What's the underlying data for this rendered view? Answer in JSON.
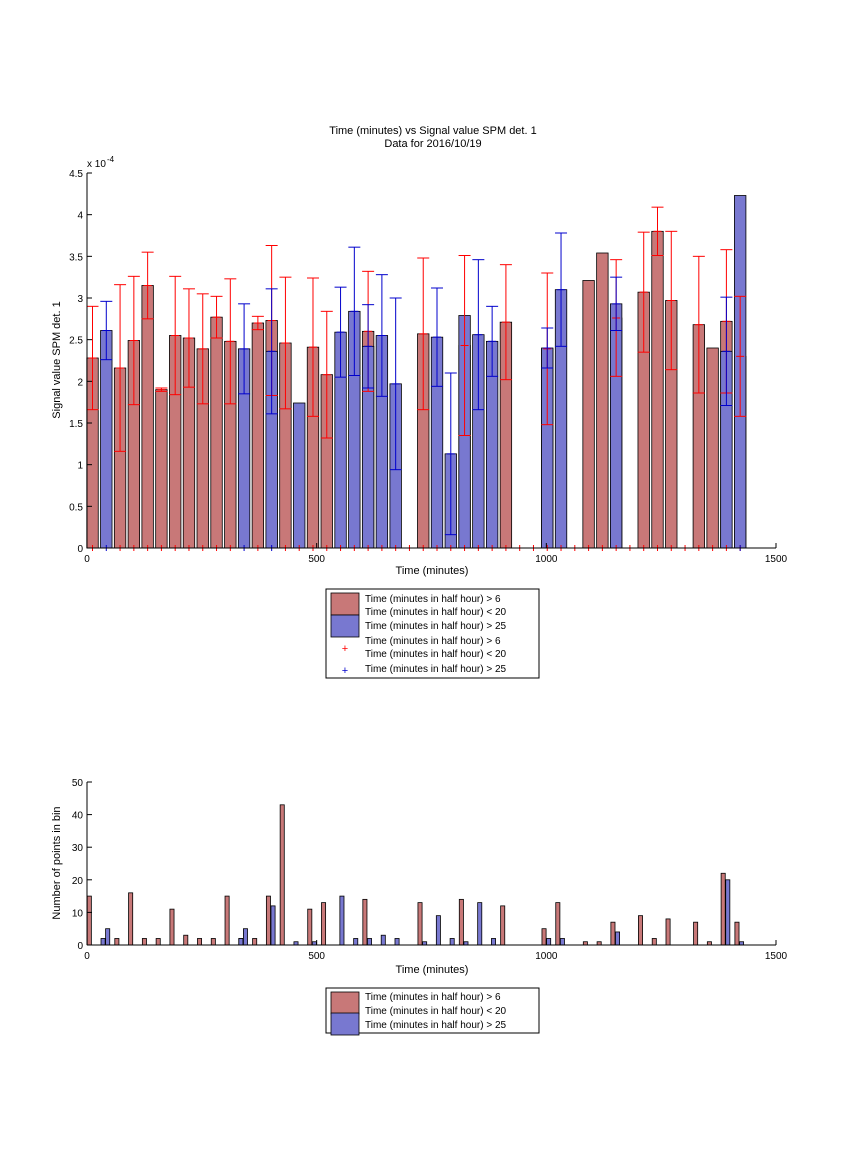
{
  "colors": {
    "series_a_fill": "#c87878",
    "series_b_fill": "#7878d0",
    "series_a_marker": "#ff0000",
    "series_b_marker": "#0000cc",
    "axis": "#000000"
  },
  "chart_data": [
    {
      "type": "bar",
      "title": "Time (minutes) vs Signal value SPM det. 1",
      "subtitle": "Data for 2016/10/19",
      "xlabel": "Time (minutes)",
      "ylabel": "Signal value SPM det. 1",
      "y_exponent_label": "x 10",
      "y_exponent": "-4",
      "xlim": [
        0,
        1500
      ],
      "ylim": [
        0,
        4.5
      ],
      "y_scale": 0.0001,
      "xticks": [
        "0",
        "500",
        "1000",
        "1500"
      ],
      "yticks": [
        "0",
        "0.5",
        "1",
        "1.5",
        "2",
        "2.5",
        "3",
        "3.5",
        "4",
        "4.5"
      ],
      "grid": false,
      "legend_position": "below",
      "legend": [
        "Time (minutes in half hour) > 6",
        "Time (minutes in half hour) < 20",
        "Time (minutes in half hour) > 25",
        "Time (minutes in half hour) > 6",
        "Time (minutes in half hour) < 20",
        "Time (minutes in half hour) > 25"
      ],
      "series": [
        {
          "series": "a",
          "bars": [
            {
              "x": 12,
              "y": 2.28,
              "err": 0.62
            },
            {
              "x": 72,
              "y": 2.16,
              "err": 1.0
            },
            {
              "x": 102,
              "y": 2.49,
              "err": 0.77
            },
            {
              "x": 132,
              "y": 3.15,
              "err": 0.4
            },
            {
              "x": 162,
              "y": 1.9,
              "err": 0.02
            },
            {
              "x": 192,
              "y": 2.55,
              "err": 0.71
            },
            {
              "x": 222,
              "y": 2.52,
              "err": 0.59
            },
            {
              "x": 252,
              "y": 2.39,
              "err": 0.66
            },
            {
              "x": 282,
              "y": 2.77,
              "err": 0.25
            },
            {
              "x": 312,
              "y": 2.48,
              "err": 0.75
            },
            {
              "x": 372,
              "y": 2.7,
              "err": 0.08
            },
            {
              "x": 402,
              "y": 2.73,
              "err": 0.9
            },
            {
              "x": 432,
              "y": 2.46,
              "err": 0.79
            },
            {
              "x": 492,
              "y": 2.41,
              "err": 0.83
            },
            {
              "x": 522,
              "y": 2.08,
              "err": 0.76
            },
            {
              "x": 612,
              "y": 2.6,
              "err": 0.72
            },
            {
              "x": 732,
              "y": 2.57,
              "err": 0.91
            },
            {
              "x": 822,
              "y": 2.43,
              "err": 1.08
            },
            {
              "x": 912,
              "y": 2.71,
              "err": 0.69
            },
            {
              "x": 1002,
              "y": 2.39,
              "err": 0.91
            },
            {
              "x": 1092,
              "y": 3.21,
              "err": 0.0
            },
            {
              "x": 1122,
              "y": 3.54,
              "err": 0.0
            },
            {
              "x": 1152,
              "y": 2.76,
              "err": 0.7
            },
            {
              "x": 1212,
              "y": 3.07,
              "err": 0.72
            },
            {
              "x": 1242,
              "y": 3.8,
              "err": 0.29
            },
            {
              "x": 1272,
              "y": 2.97,
              "err": 0.83
            },
            {
              "x": 1332,
              "y": 2.68,
              "err": 0.82
            },
            {
              "x": 1362,
              "y": 2.4,
              "err": 0.0
            },
            {
              "x": 1392,
              "y": 2.72,
              "err": 0.86
            },
            {
              "x": 1422,
              "y": 2.3,
              "err": 0.72
            }
          ]
        },
        {
          "series": "b",
          "bars": [
            {
              "x": 42,
              "y": 2.61,
              "err": 0.35
            },
            {
              "x": 342,
              "y": 2.39,
              "err": 0.54
            },
            {
              "x": 402,
              "y": 2.36,
              "err": 0.75
            },
            {
              "x": 462,
              "y": 1.74,
              "err": 0.0
            },
            {
              "x": 552,
              "y": 2.59,
              "err": 0.54
            },
            {
              "x": 582,
              "y": 2.84,
              "err": 0.77
            },
            {
              "x": 612,
              "y": 2.42,
              "err": 0.5
            },
            {
              "x": 642,
              "y": 2.55,
              "err": 0.73
            },
            {
              "x": 672,
              "y": 1.97,
              "err": 1.03
            },
            {
              "x": 762,
              "y": 2.53,
              "err": 0.59
            },
            {
              "x": 792,
              "y": 1.13,
              "err": 0.97
            },
            {
              "x": 822,
              "y": 2.79,
              "err": 0.0
            },
            {
              "x": 852,
              "y": 2.56,
              "err": 0.9
            },
            {
              "x": 882,
              "y": 2.48,
              "err": 0.42
            },
            {
              "x": 1002,
              "y": 2.4,
              "err": 0.24
            },
            {
              "x": 1032,
              "y": 3.1,
              "err": 0.68
            },
            {
              "x": 1152,
              "y": 2.93,
              "err": 0.32
            },
            {
              "x": 1392,
              "y": 2.36,
              "err": 0.65
            },
            {
              "x": 1422,
              "y": 4.23,
              "err": 0.0
            }
          ]
        }
      ],
      "markers": {
        "series_a_x": [
          12,
          72,
          102,
          132,
          162,
          192,
          222,
          252,
          282,
          312,
          372,
          432,
          462,
          492,
          522,
          552,
          582,
          612,
          642,
          672,
          702,
          732,
          762,
          792,
          822,
          852,
          882,
          912,
          942,
          972,
          1002,
          1032,
          1062,
          1092,
          1122,
          1152,
          1182,
          1212,
          1242,
          1272,
          1302,
          1332,
          1362,
          1392,
          1422
        ],
        "series_b_x": [
          42,
          342,
          402,
          1422
        ]
      }
    },
    {
      "type": "bar",
      "xlabel": "Time (minutes)",
      "ylabel": "Number of points in bin",
      "xlim": [
        0,
        1500
      ],
      "ylim": [
        0,
        50
      ],
      "xticks": [
        "0",
        "500",
        "1000",
        "1500"
      ],
      "yticks": [
        "0",
        "10",
        "20",
        "30",
        "40",
        "50"
      ],
      "grid": false,
      "legend_position": "below",
      "legend": [
        "Time (minutes in half hour) > 6",
        "Time (minutes in half hour) < 20",
        "Time (minutes in half hour) > 25"
      ],
      "series": [
        {
          "series": "a",
          "bars": [
            {
              "x": 5,
              "y": 15
            },
            {
              "x": 65,
              "y": 2
            },
            {
              "x": 95,
              "y": 16
            },
            {
              "x": 125,
              "y": 2
            },
            {
              "x": 155,
              "y": 2
            },
            {
              "x": 185,
              "y": 11
            },
            {
              "x": 215,
              "y": 3
            },
            {
              "x": 245,
              "y": 2
            },
            {
              "x": 275,
              "y": 2
            },
            {
              "x": 305,
              "y": 15
            },
            {
              "x": 335,
              "y": 2
            },
            {
              "x": 365,
              "y": 2
            },
            {
              "x": 395,
              "y": 15
            },
            {
              "x": 425,
              "y": 43
            },
            {
              "x": 485,
              "y": 11
            },
            {
              "x": 515,
              "y": 13
            },
            {
              "x": 605,
              "y": 14
            },
            {
              "x": 725,
              "y": 13
            },
            {
              "x": 815,
              "y": 14
            },
            {
              "x": 905,
              "y": 12
            },
            {
              "x": 995,
              "y": 5
            },
            {
              "x": 1025,
              "y": 13
            },
            {
              "x": 1085,
              "y": 1
            },
            {
              "x": 1115,
              "y": 1
            },
            {
              "x": 1145,
              "y": 7
            },
            {
              "x": 1205,
              "y": 9
            },
            {
              "x": 1235,
              "y": 2
            },
            {
              "x": 1265,
              "y": 8
            },
            {
              "x": 1325,
              "y": 7
            },
            {
              "x": 1355,
              "y": 1
            },
            {
              "x": 1385,
              "y": 22
            },
            {
              "x": 1415,
              "y": 7
            }
          ]
        },
        {
          "series": "b",
          "bars": [
            {
              "x": 35,
              "y": 2
            },
            {
              "x": 45,
              "y": 5
            },
            {
              "x": 335,
              "y": 2
            },
            {
              "x": 345,
              "y": 5
            },
            {
              "x": 405,
              "y": 12
            },
            {
              "x": 455,
              "y": 1
            },
            {
              "x": 495,
              "y": 1
            },
            {
              "x": 555,
              "y": 15
            },
            {
              "x": 585,
              "y": 2
            },
            {
              "x": 615,
              "y": 2
            },
            {
              "x": 645,
              "y": 3
            },
            {
              "x": 675,
              "y": 2
            },
            {
              "x": 735,
              "y": 1
            },
            {
              "x": 765,
              "y": 9
            },
            {
              "x": 795,
              "y": 2
            },
            {
              "x": 825,
              "y": 1
            },
            {
              "x": 855,
              "y": 13
            },
            {
              "x": 885,
              "y": 2
            },
            {
              "x": 1005,
              "y": 2
            },
            {
              "x": 1035,
              "y": 2
            },
            {
              "x": 1155,
              "y": 4
            },
            {
              "x": 1395,
              "y": 20
            },
            {
              "x": 1425,
              "y": 1
            }
          ]
        }
      ]
    }
  ]
}
